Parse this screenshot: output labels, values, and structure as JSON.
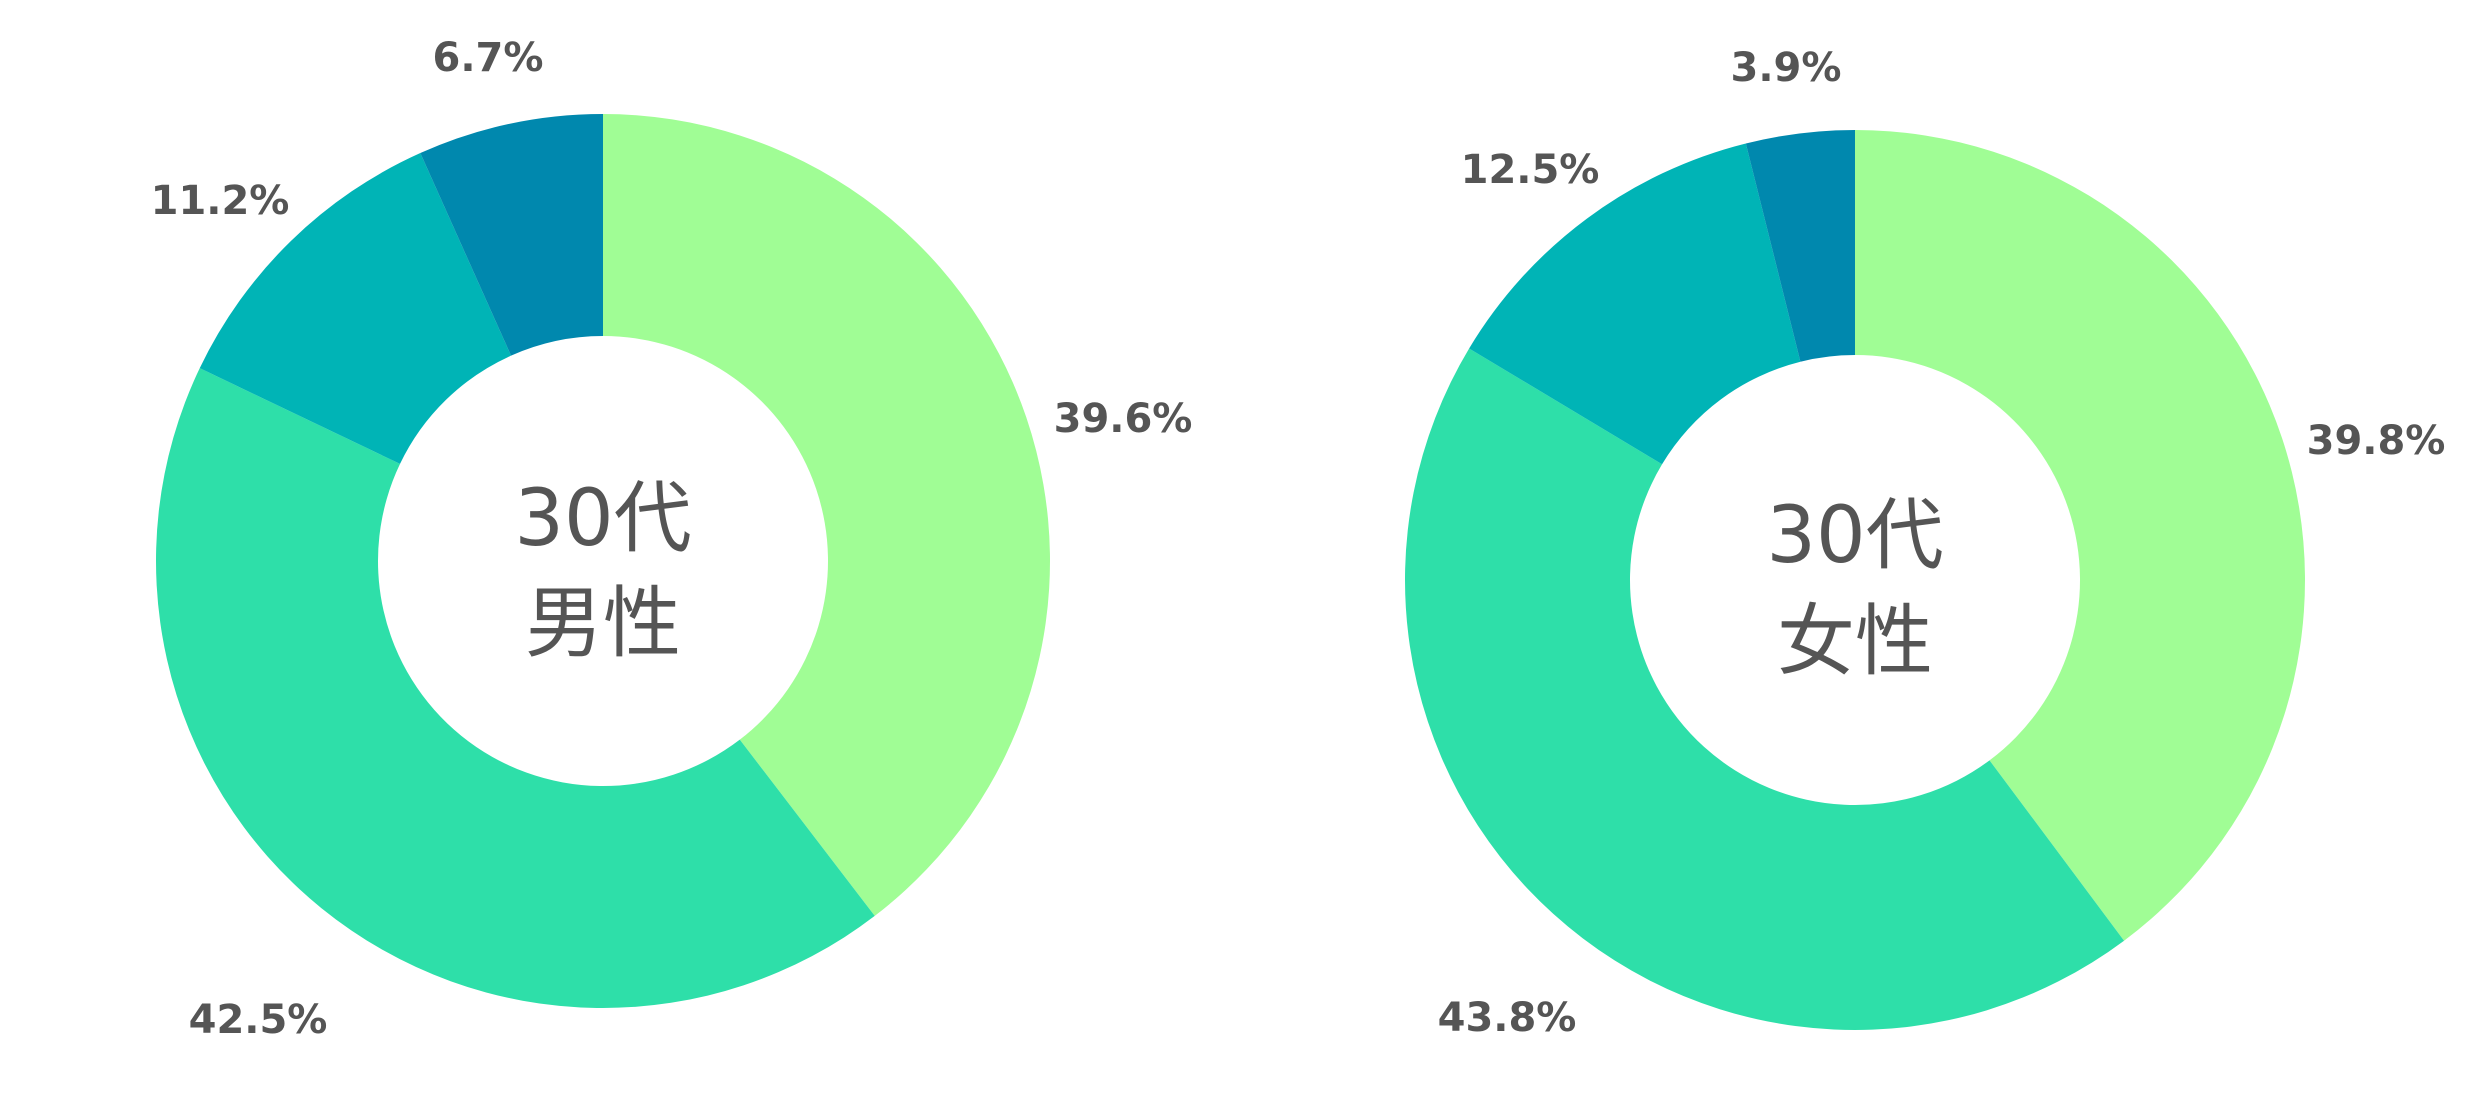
{
  "chart_data": [
    {
      "type": "pie",
      "center_label": [
        "30代",
        "男性"
      ],
      "values": [
        39.6,
        42.5,
        11.2,
        6.7
      ],
      "labels": [
        "39.6%",
        "42.5%",
        "11.2%",
        "6.7%"
      ],
      "colors": [
        "#a0fd95",
        "#2edfa9",
        "#00b4b6",
        "#0088ae"
      ]
    },
    {
      "type": "pie",
      "center_label": [
        "30代",
        "女性"
      ],
      "values": [
        39.8,
        43.8,
        12.5,
        3.9
      ],
      "labels": [
        "39.8%",
        "43.8%",
        "12.5%",
        "3.9%"
      ],
      "colors": [
        "#a0fd95",
        "#2edfa9",
        "#00b4b6",
        "#0088ae"
      ]
    }
  ]
}
